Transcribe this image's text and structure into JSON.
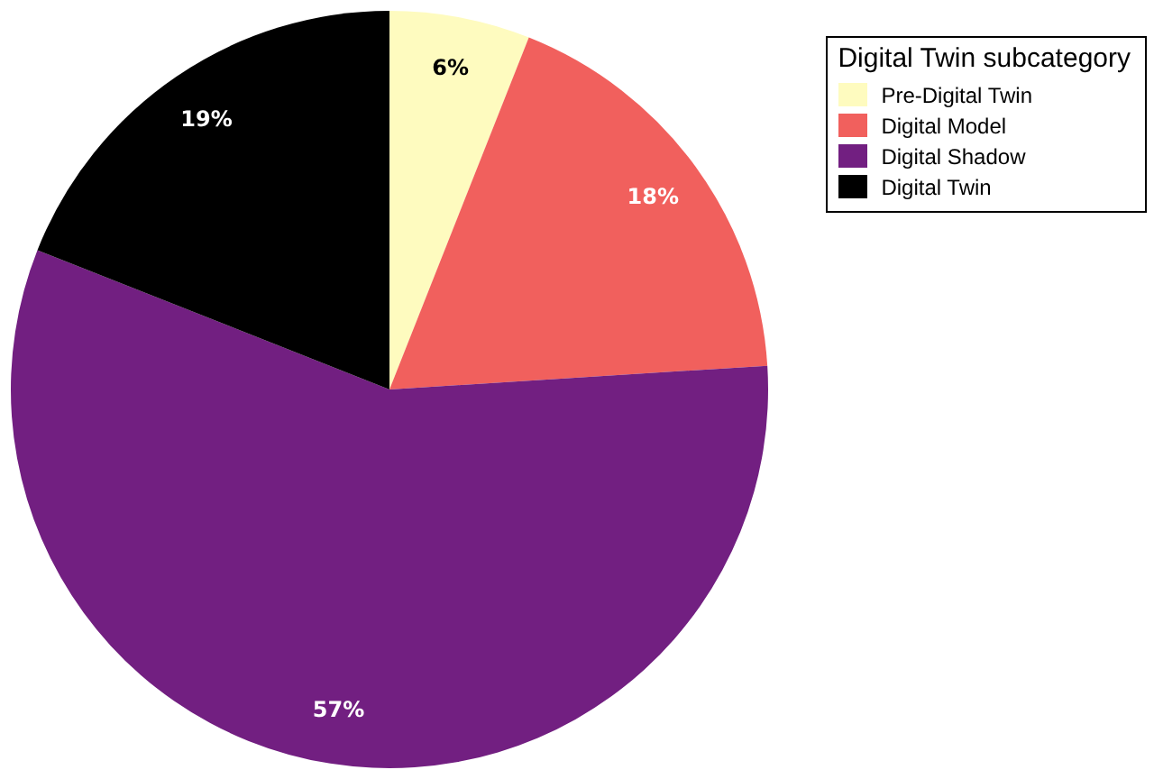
{
  "chart_data": {
    "type": "pie",
    "legend_title": "Digital Twin subcategory",
    "legend": "top right",
    "categories": [
      "Pre-Digital Twin",
      "Digital Model",
      "Digital Shadow",
      "Digital Twin"
    ],
    "values": [
      6,
      18,
      57,
      19
    ],
    "value_labels": [
      "6%",
      "18%",
      "57%",
      "19%"
    ],
    "colors": [
      "#fefbbf",
      "#f1605d",
      "#721f81",
      "#000000"
    ]
  }
}
